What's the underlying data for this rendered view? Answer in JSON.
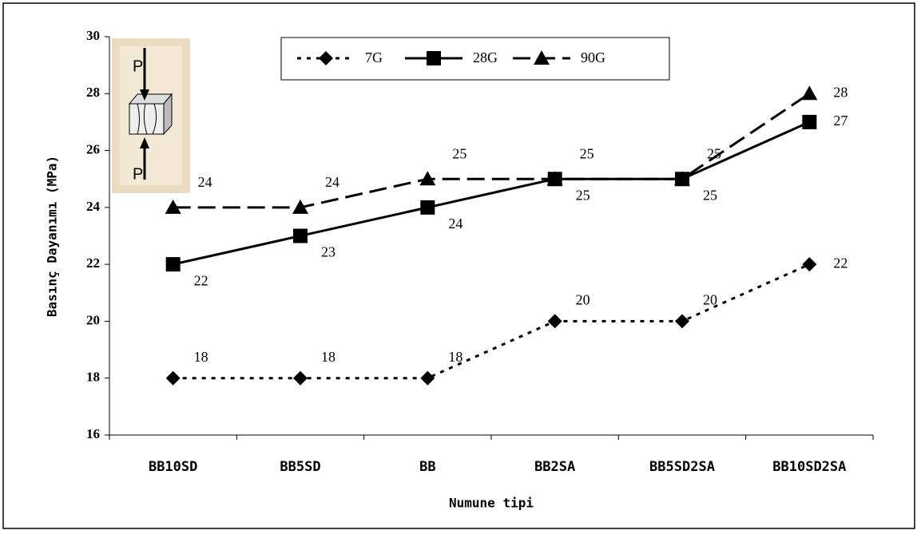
{
  "chart_data": {
    "type": "line",
    "x_label": "Numune tipi",
    "y_label": "Basınç Dayanımı (MPa)",
    "categories": [
      "BB10SD",
      "BB5SD",
      "BB",
      "BB2SA",
      "BB5SD2SA",
      "BB10SD2SA"
    ],
    "series": [
      {
        "name": "7G",
        "color": "#000000",
        "marker": "diamond",
        "dash": "dotted",
        "values": [
          18,
          18,
          18,
          20,
          20,
          22
        ]
      },
      {
        "name": "28G",
        "color": "#000000",
        "marker": "square",
        "dash": "solid",
        "values": [
          22,
          23,
          24,
          25,
          25,
          27
        ]
      },
      {
        "name": "90G",
        "color": "#000000",
        "marker": "triangle",
        "dash": "dashed",
        "values": [
          24,
          24,
          25,
          25,
          25,
          28
        ]
      }
    ],
    "ylim": [
      16,
      30
    ],
    "yticks": [
      16,
      18,
      20,
      22,
      24,
      26,
      28,
      30
    ],
    "grid": false,
    "legend": "top",
    "annotations": [
      "P",
      "P"
    ]
  }
}
